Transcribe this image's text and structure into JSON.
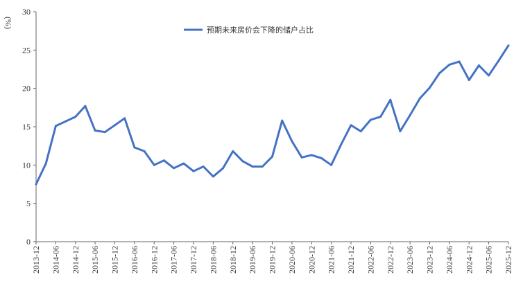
{
  "chart_data": {
    "type": "line",
    "title": "",
    "xlabel": "",
    "ylabel": "(%)",
    "ylim": [
      0,
      30
    ],
    "yticks": [
      "0",
      "5",
      "10",
      "15",
      "20",
      "25",
      "30"
    ],
    "grid": false,
    "legend_position": "top-center",
    "color": "#4472C4",
    "x_tick_labels": [
      "2013-12",
      "2014-06",
      "2014-12",
      "2015-06",
      "2015-12",
      "2016-06",
      "2016-12",
      "2017-06",
      "2017-12",
      "2018-06",
      "2018-12",
      "2019-06",
      "2019-12",
      "2020-06",
      "2020-12",
      "2021-06",
      "2021-12",
      "2022-06",
      "2022-12",
      "2023-06",
      "2023-12",
      "2024-06",
      "2024-12",
      "2025-06",
      "2025-12"
    ],
    "x": [
      "2013-12",
      "2014-03",
      "2014-06",
      "2014-09",
      "2014-12",
      "2015-03",
      "2015-06",
      "2015-09",
      "2015-12",
      "2016-03",
      "2016-06",
      "2016-09",
      "2016-12",
      "2017-03",
      "2017-06",
      "2017-09",
      "2017-12",
      "2018-03",
      "2018-06",
      "2018-09",
      "2018-12",
      "2019-03",
      "2019-06",
      "2019-09",
      "2019-12",
      "2020-03",
      "2020-06",
      "2020-09",
      "2020-12",
      "2021-03",
      "2021-06",
      "2021-09",
      "2021-12",
      "2022-03",
      "2022-06",
      "2022-09",
      "2022-12",
      "2023-03",
      "2023-06",
      "2023-09",
      "2023-12",
      "2024-03",
      "2024-06",
      "2024-09",
      "2024-12",
      "2025-03",
      "2025-06",
      "2025-09",
      "2025-12"
    ],
    "series": [
      {
        "name": "预期未来房价会下降的储户占比",
        "values": [
          7.5,
          10.2,
          15.1,
          15.7,
          16.3,
          17.7,
          14.5,
          14.3,
          15.2,
          16.1,
          12.3,
          11.8,
          10.0,
          10.6,
          9.6,
          10.2,
          9.2,
          9.8,
          8.5,
          9.6,
          11.8,
          10.5,
          9.8,
          9.8,
          11.1,
          15.8,
          13.1,
          11.0,
          11.3,
          10.9,
          10.0,
          12.7,
          15.2,
          14.4,
          15.9,
          16.3,
          18.5,
          14.4,
          16.5,
          18.7,
          20.1,
          22.0,
          23.1,
          23.5,
          21.1,
          23.0,
          21.7,
          23.6,
          25.6
        ]
      }
    ]
  }
}
